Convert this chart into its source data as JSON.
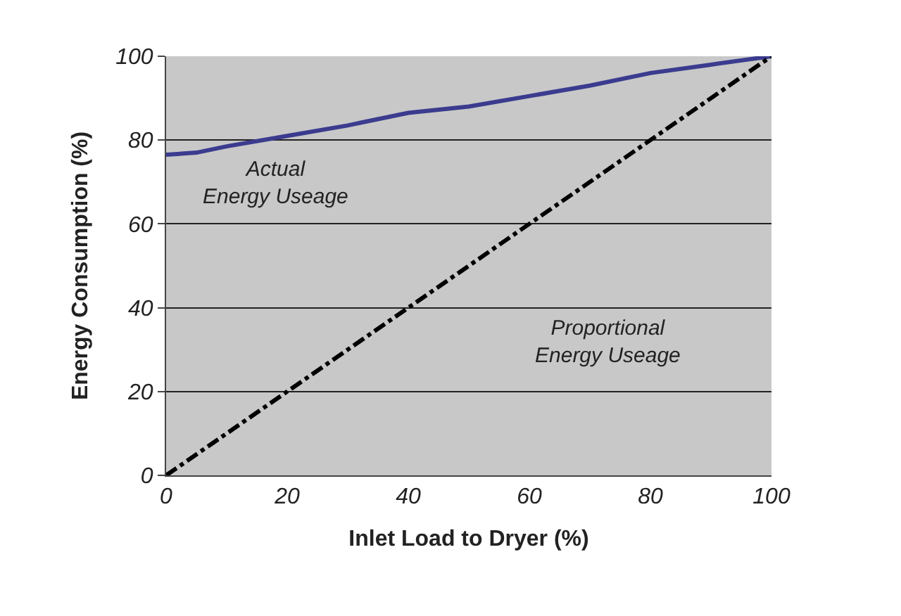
{
  "chart_data": {
    "type": "line",
    "xlabel": "Inlet Load to Dryer (%)",
    "ylabel": "Energy Consumption (%)",
    "x": [
      0,
      5,
      10,
      20,
      30,
      40,
      50,
      60,
      70,
      80,
      90,
      100
    ],
    "series": [
      {
        "color": "#3b3b8f",
        "line_style": "solid",
        "values": [
          76.5,
          77,
          78.5,
          81,
          83.5,
          86.5,
          88,
          90.5,
          93,
          96,
          98,
          100
        ]
      },
      {
        "color": "#000000",
        "line_style": "dashdot",
        "x": [
          0,
          100
        ],
        "values": [
          0,
          100
        ]
      }
    ],
    "xlim": [
      0,
      100
    ],
    "xticks": [
      0,
      20,
      40,
      60,
      80,
      100
    ],
    "ylim": [
      0,
      100
    ],
    "yticks": [
      0,
      20,
      40,
      60,
      80,
      100
    ],
    "grid": "y",
    "marker": "none",
    "annotations": [
      "Actual\nEnergy Useage",
      "Proportional\nEnergy Useage"
    ]
  }
}
